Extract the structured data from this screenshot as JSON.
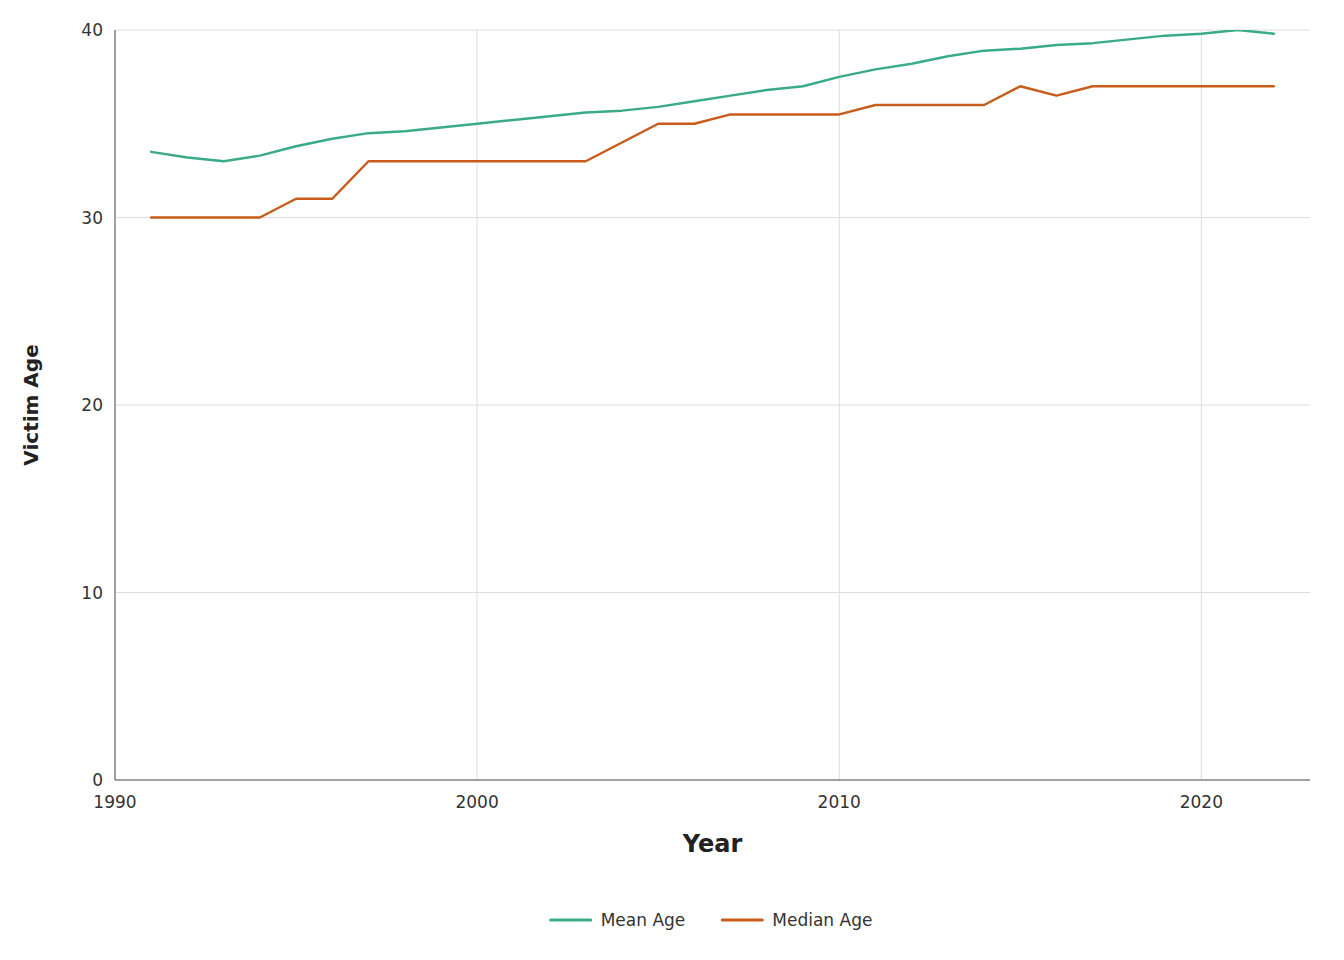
{
  "chart_data": {
    "type": "line",
    "xlabel": "Year",
    "ylabel": "Victim Age",
    "x": [
      1991,
      1992,
      1993,
      1994,
      1995,
      1996,
      1997,
      1998,
      1999,
      2000,
      2001,
      2002,
      2003,
      2004,
      2005,
      2006,
      2007,
      2008,
      2009,
      2010,
      2011,
      2012,
      2013,
      2014,
      2015,
      2016,
      2017,
      2018,
      2019,
      2020,
      2021,
      2022
    ],
    "series": [
      {
        "name": "Mean Age",
        "color": "#3aab8a",
        "values": [
          33.5,
          33.2,
          33.0,
          33.3,
          33.8,
          34.2,
          34.5,
          34.6,
          34.8,
          35.0,
          35.2,
          35.4,
          35.6,
          35.7,
          35.9,
          36.2,
          36.5,
          36.8,
          37.0,
          37.5,
          37.9,
          38.2,
          38.6,
          38.9,
          39.0,
          39.2,
          39.3,
          39.5,
          39.7,
          39.8,
          40.0,
          39.8
        ]
      },
      {
        "name": "Median Age",
        "color": "#c85c1a",
        "values": [
          30.0,
          30.0,
          30.0,
          30.0,
          31.0,
          31.0,
          33.0,
          33.0,
          33.0,
          33.0,
          33.0,
          33.0,
          33.0,
          34.0,
          35.0,
          35.0,
          35.5,
          35.5,
          35.5,
          35.5,
          36.0,
          36.0,
          36.0,
          36.0,
          37.0,
          36.5,
          37.0,
          37.0,
          37.0,
          37.0,
          37.0,
          37.0
        ]
      }
    ],
    "xlim": [
      1990,
      2023
    ],
    "xticks": [
      1990,
      2000,
      2010,
      2020
    ],
    "ylim": [
      0,
      40
    ],
    "yticks": [
      0,
      10,
      20,
      30,
      40
    ],
    "grid": true,
    "legend": "bottom"
  }
}
